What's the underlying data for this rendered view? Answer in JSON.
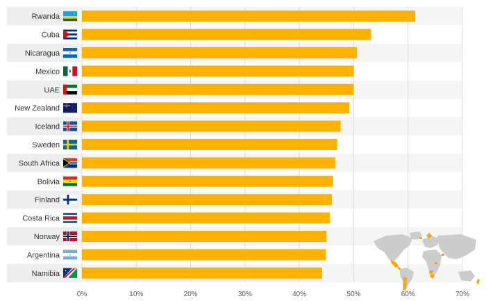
{
  "chart_data": {
    "type": "bar",
    "orientation": "horizontal",
    "title": "",
    "xlabel": "",
    "ylabel": "",
    "categories": [
      "Rwanda",
      "Cuba",
      "Nicaragua",
      "Mexico",
      "UAE",
      "New Zealand",
      "Iceland",
      "Sweden",
      "South Africa",
      "Bolivia",
      "Finland",
      "Costa Rica",
      "Norway",
      "Argentina",
      "Namibia"
    ],
    "values": [
      61.3,
      53.2,
      50.6,
      50.0,
      50.0,
      49.2,
      47.6,
      47.0,
      46.6,
      46.2,
      46.0,
      45.6,
      45.0,
      44.9,
      44.2
    ],
    "xlim": [
      0,
      70
    ],
    "ticks": [
      0,
      10,
      20,
      30,
      40,
      50,
      60,
      70
    ],
    "tick_suffix": "%",
    "grid": true,
    "bar_color": "#FDB200",
    "accent_color": "#F5A800"
  },
  "flags": [
    {
      "country": "Rwanda",
      "icon": "rwanda-flag-icon"
    },
    {
      "country": "Cuba",
      "icon": "cuba-flag-icon"
    },
    {
      "country": "Nicaragua",
      "icon": "nicaragua-flag-icon"
    },
    {
      "country": "Mexico",
      "icon": "mexico-flag-icon"
    },
    {
      "country": "UAE",
      "icon": "uae-flag-icon"
    },
    {
      "country": "New Zealand",
      "icon": "new-zealand-flag-icon"
    },
    {
      "country": "Iceland",
      "icon": "iceland-flag-icon"
    },
    {
      "country": "Sweden",
      "icon": "sweden-flag-icon"
    },
    {
      "country": "South Africa",
      "icon": "south-africa-flag-icon"
    },
    {
      "country": "Bolivia",
      "icon": "bolivia-flag-icon"
    },
    {
      "country": "Finland",
      "icon": "finland-flag-icon"
    },
    {
      "country": "Costa Rica",
      "icon": "costa-rica-flag-icon"
    },
    {
      "country": "Norway",
      "icon": "norway-flag-icon"
    },
    {
      "country": "Argentina",
      "icon": "argentina-flag-icon"
    },
    {
      "country": "Namibia",
      "icon": "namibia-flag-icon"
    }
  ],
  "map_icon": "world-map-icon"
}
